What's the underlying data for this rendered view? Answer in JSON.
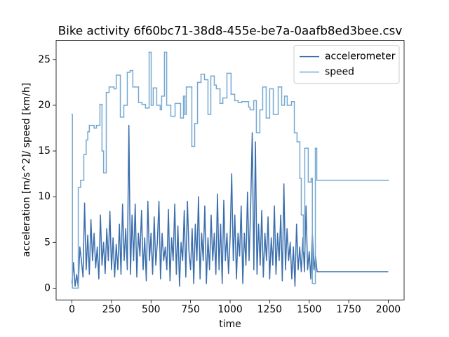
{
  "chart_data": {
    "type": "line",
    "title": "Bike activity 6f60bc71-38d8-455e-be7a-0aafb8ed3bee.csv",
    "x_label": "time",
    "y_label": "acceleration [m/s^2]/ speed [km/h]",
    "xlim": [
      -100,
      2100
    ],
    "ylim": [
      -1.29,
      27.09
    ],
    "xticks": [
      0,
      250,
      500,
      750,
      1000,
      1250,
      1500,
      1750,
      2000
    ],
    "yticks": [
      0,
      5,
      10,
      15,
      20,
      25
    ],
    "legend": "upper right",
    "series": [
      {
        "name": "accelerometer",
        "color": "#3a6ead",
        "drawstyle": "default",
        "x": [
          0,
          10,
          20,
          30,
          40,
          50,
          60,
          70,
          80,
          90,
          100,
          110,
          120,
          130,
          140,
          150,
          160,
          170,
          180,
          190,
          200,
          210,
          220,
          230,
          240,
          250,
          260,
          270,
          280,
          290,
          300,
          310,
          320,
          330,
          340,
          350,
          360,
          370,
          380,
          390,
          400,
          410,
          420,
          430,
          440,
          450,
          460,
          470,
          480,
          490,
          500,
          510,
          520,
          530,
          540,
          550,
          560,
          570,
          580,
          590,
          600,
          610,
          620,
          630,
          640,
          650,
          660,
          670,
          680,
          690,
          700,
          710,
          720,
          730,
          740,
          750,
          760,
          770,
          780,
          790,
          800,
          810,
          820,
          830,
          840,
          850,
          860,
          870,
          880,
          890,
          900,
          910,
          920,
          930,
          940,
          950,
          960,
          970,
          980,
          990,
          1000,
          1010,
          1020,
          1030,
          1040,
          1050,
          1060,
          1070,
          1080,
          1090,
          1100,
          1110,
          1120,
          1130,
          1140,
          1150,
          1160,
          1170,
          1180,
          1190,
          1200,
          1210,
          1220,
          1230,
          1240,
          1250,
          1260,
          1270,
          1280,
          1290,
          1300,
          1310,
          1320,
          1330,
          1340,
          1350,
          1360,
          1370,
          1380,
          1390,
          1400,
          1410,
          1420,
          1430,
          1440,
          1450,
          1460,
          1470,
          1480,
          1490,
          1500,
          1510,
          1520,
          1530,
          1540,
          1550,
          2000
        ],
        "values": [
          0.5,
          2.8,
          0.2,
          1.5,
          0.1,
          4.5,
          3,
          1.2,
          9.3,
          2,
          5.8,
          1.5,
          7.5,
          3,
          6,
          2.2,
          4.5,
          1,
          8,
          2.5,
          5,
          1.6,
          6.5,
          3,
          8.4,
          2,
          5.5,
          1.2,
          4.8,
          2,
          7,
          1.5,
          9.2,
          3,
          6.5,
          2,
          17.8,
          1.5,
          8,
          3,
          9.2,
          1.2,
          6,
          3.5,
          8.5,
          2,
          5.5,
          0.8,
          9.5,
          3,
          6,
          1.5,
          7.8,
          2.5,
          5,
          9.5,
          1,
          6,
          3,
          4.5,
          2,
          8.6,
          0.8,
          5.5,
          3,
          9.2,
          1.5,
          6.8,
          0.2,
          5,
          3,
          8.5,
          1.2,
          9.5,
          4,
          2,
          6.5,
          0.5,
          7,
          3,
          10,
          1,
          6,
          3,
          9,
          0.5,
          5.5,
          2,
          8,
          3,
          6,
          1.5,
          10.3,
          2,
          7,
          0.5,
          9.6,
          3,
          6,
          1.6,
          5.5,
          12.5,
          3,
          8,
          1,
          6,
          3.5,
          9,
          0.5,
          6,
          2.5,
          10.5,
          3,
          9,
          17,
          2,
          16,
          1.5,
          7,
          2.5,
          8.5,
          1.2,
          6,
          3,
          7.8,
          1,
          5.5,
          2.5,
          9,
          1.5,
          6,
          3,
          8,
          0.8,
          11.4,
          2,
          6.5,
          3,
          5,
          1,
          4.5,
          0.2,
          7,
          2,
          4.5,
          1.8,
          5.5,
          1.8,
          9,
          2,
          4,
          1,
          6,
          2,
          3.5,
          1.8,
          1.8
        ]
      },
      {
        "name": "speed",
        "color": "#76a8d0",
        "drawstyle": "steps-post",
        "x": [
          0,
          3,
          40,
          55,
          75,
          90,
          100,
          110,
          140,
          155,
          177,
          190,
          200,
          217,
          235,
          266,
          280,
          306,
          328,
          350,
          368,
          385,
          421,
          443,
          465,
          488,
          501,
          514,
          536,
          558,
          567,
          585,
          599,
          625,
          652,
          687,
          705,
          714,
          723,
          758,
          776,
          794,
          816,
          838,
          860,
          878,
          900,
          913,
          936,
          954,
          980,
          1006,
          1029,
          1051,
          1073,
          1117,
          1126,
          1149,
          1166,
          1188,
          1206,
          1228,
          1250,
          1273,
          1304,
          1326,
          1344,
          1361,
          1388,
          1406,
          1423,
          1441,
          1450,
          1463,
          1472,
          1494,
          1512,
          1520,
          1539,
          1548,
          2000
        ],
        "values": [
          19,
          0,
          11,
          11.8,
          14.6,
          16.2,
          17.1,
          17.8,
          17.5,
          17.8,
          20.1,
          15,
          12.6,
          21.4,
          22,
          21.8,
          23.3,
          18.7,
          20,
          23.6,
          23.8,
          22,
          20.3,
          20.1,
          19.7,
          25.8,
          20,
          21.9,
          20,
          19.5,
          21,
          25.8,
          20,
          18.8,
          20.2,
          18.6,
          21,
          19,
          22,
          15.5,
          18,
          22.5,
          23.4,
          22.8,
          19,
          23.2,
          22.2,
          21.8,
          20.2,
          20.8,
          23.5,
          21.2,
          20.5,
          20.3,
          20.4,
          19.8,
          19.5,
          20.5,
          17,
          19.5,
          22,
          18.6,
          21.8,
          19,
          22,
          20,
          21,
          20,
          20.4,
          17,
          16,
          12,
          8,
          4,
          15.3,
          11.6,
          12,
          0.5,
          15.3,
          11.8,
          11.8
        ]
      }
    ]
  }
}
